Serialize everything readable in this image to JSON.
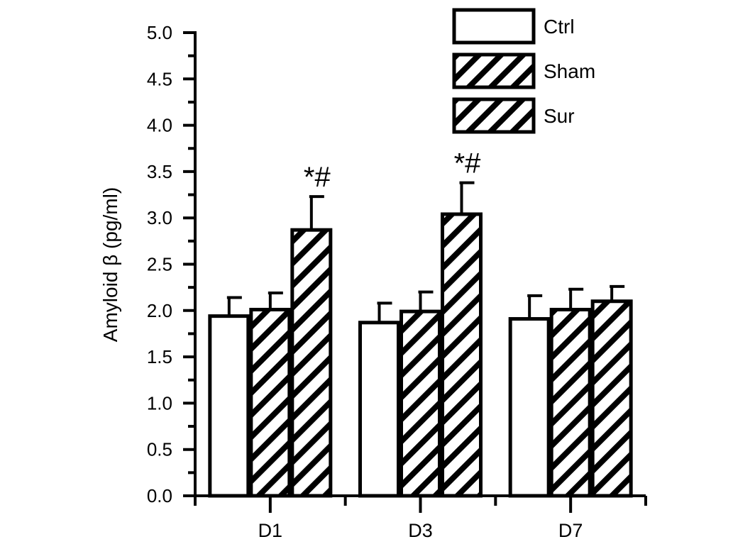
{
  "chart_data": {
    "type": "bar",
    "categories": [
      "D1",
      "D3",
      "D7"
    ],
    "series": [
      {
        "name": "Ctrl",
        "values": [
          1.94,
          1.87,
          1.91
        ],
        "errors": [
          0.2,
          0.21,
          0.25
        ],
        "pattern": "none"
      },
      {
        "name": "Sham",
        "values": [
          2.01,
          1.99,
          2.01
        ],
        "errors": [
          0.18,
          0.21,
          0.22
        ],
        "pattern": "hatch"
      },
      {
        "name": "Sur",
        "values": [
          2.87,
          3.04,
          2.1
        ],
        "errors": [
          0.36,
          0.34,
          0.16
        ],
        "pattern": "hatch"
      }
    ],
    "annotations": [
      {
        "category": "D1",
        "series": "Sur",
        "text": "*#"
      },
      {
        "category": "D3",
        "series": "Sur",
        "text": "*#"
      }
    ],
    "ylabel": "Amyloid β  (pg/ml)",
    "xlabel": "",
    "title": "",
    "ylim": [
      0,
      5.0
    ],
    "yticks": [
      "0.0",
      "0.5",
      "1.0",
      "1.5",
      "2.0",
      "2.5",
      "3.0",
      "3.5",
      "4.0",
      "4.5",
      "5.0"
    ],
    "legend": {
      "position": "top-right",
      "entries": [
        "Ctrl",
        "Sham",
        "Sur"
      ]
    },
    "grid": false,
    "colors": {
      "stroke": "#000000",
      "fill": "#ffffff",
      "hatch": "#000000"
    }
  }
}
